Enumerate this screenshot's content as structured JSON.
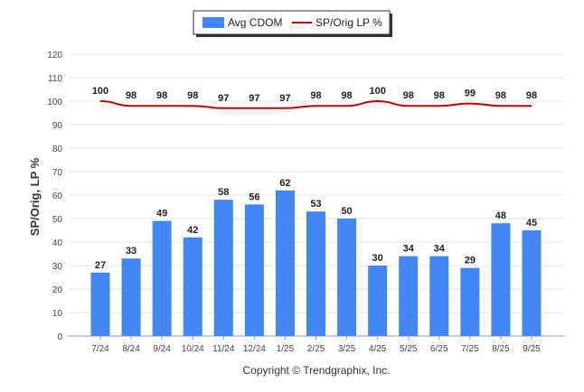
{
  "chart_data": {
    "type": "bar",
    "categories": [
      "7/24",
      "8/24",
      "9/24",
      "10/24",
      "11/24",
      "12/24",
      "1/25",
      "2/25",
      "3/25",
      "4/25",
      "5/25",
      "6/25",
      "7/25",
      "8/25",
      "9/25"
    ],
    "series": [
      {
        "name": "Avg CDOM",
        "kind": "bar",
        "color": "#4285f4",
        "values": [
          27,
          33,
          49,
          42,
          58,
          56,
          62,
          53,
          50,
          30,
          34,
          34,
          29,
          48,
          45
        ]
      },
      {
        "name": "SP/Orig LP %",
        "kind": "line",
        "color": "#c00000",
        "values": [
          100,
          98,
          98,
          98,
          97,
          97,
          97,
          98,
          98,
          100,
          98,
          98,
          99,
          98,
          98
        ]
      }
    ],
    "ylabel": "SP/Orig, LP %",
    "ylim": [
      0,
      120
    ],
    "yticks": [
      0,
      10,
      20,
      30,
      40,
      50,
      60,
      70,
      80,
      90,
      100,
      110,
      120
    ],
    "grid": true,
    "legend": "top-center",
    "footer": "Copyright © Trendgraphix, Inc."
  }
}
